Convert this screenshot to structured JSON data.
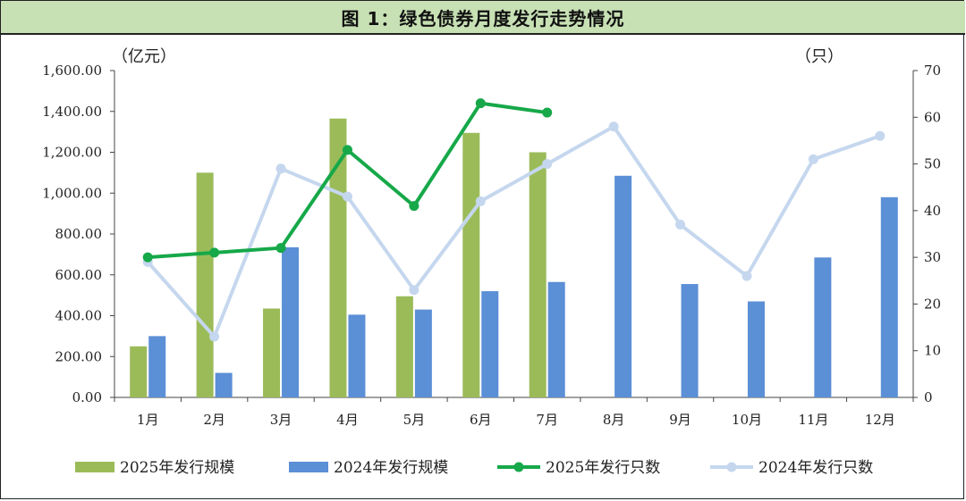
{
  "title": "图 1：绿色债券月度发行走势情况",
  "chart_data": {
    "type": "bar",
    "title": "图 1：绿色债券月度发行走势情况",
    "categories": [
      "1月",
      "2月",
      "3月",
      "4月",
      "5月",
      "6月",
      "7月",
      "8月",
      "9月",
      "10月",
      "11月",
      "12月"
    ],
    "y_left": {
      "unit": "（亿元）",
      "range": [
        0,
        1600
      ],
      "ticks": [
        "0.00",
        "200.00",
        "400.00",
        "600.00",
        "800.00",
        "1,000.00",
        "1,200.00",
        "1,400.00",
        "1,600.00"
      ]
    },
    "y_right": {
      "unit": "（只）",
      "range": [
        0,
        70
      ],
      "ticks": [
        "0",
        "10",
        "20",
        "30",
        "40",
        "50",
        "60",
        "70"
      ]
    },
    "series": [
      {
        "name": "2025年发行规模",
        "type": "bar",
        "axis": "left",
        "color": "#9bbb59",
        "values": [
          250,
          1100,
          435,
          1365,
          495,
          1295,
          1200,
          null,
          null,
          null,
          null,
          null
        ]
      },
      {
        "name": "2024年发行规模",
        "type": "bar",
        "axis": "left",
        "color": "#5b8fd6",
        "values": [
          300,
          120,
          735,
          405,
          430,
          520,
          565,
          1085,
          555,
          470,
          685,
          980
        ]
      },
      {
        "name": "2025年发行只数",
        "type": "line",
        "axis": "right",
        "color": "#16a849",
        "values": [
          30,
          31,
          32,
          53,
          41,
          63,
          61,
          null,
          null,
          null,
          null,
          null
        ]
      },
      {
        "name": "2024年发行只数",
        "type": "line",
        "axis": "right",
        "color": "#c5d7ee",
        "values": [
          29,
          13,
          49,
          43,
          23,
          42,
          50,
          58,
          37,
          26,
          51,
          56
        ]
      }
    ],
    "grid": false,
    "legend": "bottom"
  }
}
